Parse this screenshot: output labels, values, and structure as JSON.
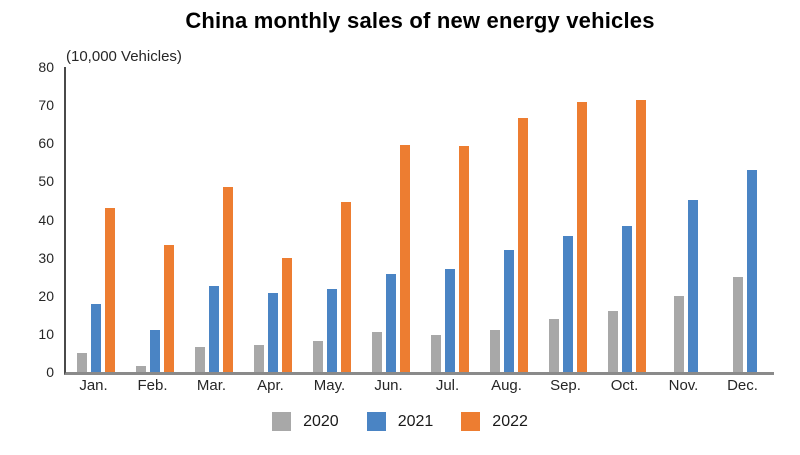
{
  "title": "China monthly sales of new energy vehicles",
  "unit_label": "(10,000 Vehicles)",
  "chart_data": {
    "type": "bar",
    "title": "China monthly sales of new energy vehicles",
    "unit_label": "(10,000 Vehicles)",
    "categories": [
      "Jan.",
      "Feb.",
      "Mar.",
      "Apr.",
      "May.",
      "Jun.",
      "Jul.",
      "Aug.",
      "Sep.",
      "Oct.",
      "Nov.",
      "Dec."
    ],
    "series": [
      {
        "name": "2020",
        "color": "#a8a8a8",
        "values": [
          5.0,
          1.5,
          6.6,
          7.2,
          8.2,
          10.4,
          9.8,
          10.9,
          13.8,
          16.0,
          20.0,
          24.8
        ]
      },
      {
        "name": "2021",
        "color": "#4a84c4",
        "values": [
          17.9,
          11.1,
          22.6,
          20.6,
          21.7,
          25.6,
          27.1,
          32.1,
          35.7,
          38.3,
          45.0,
          53.1
        ]
      },
      {
        "name": "2022",
        "color": "#ed7d31",
        "values": [
          43.1,
          33.4,
          48.4,
          29.9,
          44.7,
          59.6,
          59.3,
          66.6,
          70.8,
          71.4,
          null,
          null
        ]
      }
    ],
    "ylim": [
      0,
      80
    ],
    "yticks": [
      0,
      10,
      20,
      30,
      40,
      50,
      60,
      70,
      80
    ],
    "grid": false,
    "legend_position": "bottom"
  }
}
